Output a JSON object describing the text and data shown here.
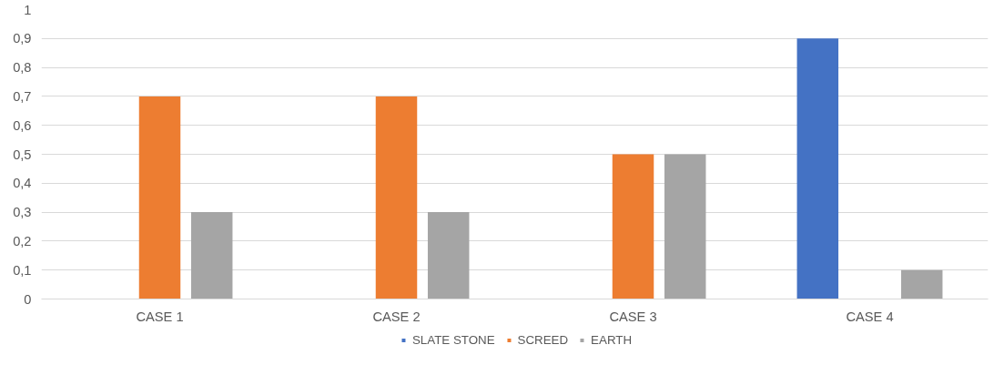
{
  "chart_data": {
    "type": "bar",
    "categories": [
      "CASE 1",
      "CASE 2",
      "CASE 3",
      "CASE 4"
    ],
    "series": [
      {
        "name": "SLATE STONE",
        "color": "#4472c4",
        "values": [
          0,
          0,
          0,
          0.9
        ]
      },
      {
        "name": "SCREED",
        "color": "#ed7d31",
        "values": [
          0.7,
          0.7,
          0.5,
          0
        ]
      },
      {
        "name": "EARTH",
        "color": "#a5a5a5",
        "values": [
          0.3,
          0.3,
          0.5,
          0.1
        ]
      }
    ],
    "ylim": [
      0,
      1
    ],
    "yticks": [
      0,
      {
        "value": 0.1,
        "label": "0,1"
      },
      {
        "value": 0.2,
        "label": "0,2"
      },
      {
        "value": 0.3,
        "label": "0,3"
      },
      {
        "value": 0.4,
        "label": "0,4"
      },
      {
        "value": 0.5,
        "label": "0,5"
      },
      {
        "value": 0.6,
        "label": "0,6"
      },
      {
        "value": 0.7,
        "label": "0,7"
      },
      {
        "value": 0.8,
        "label": "0,8"
      },
      {
        "value": 0.9,
        "label": "0,9"
      },
      1
    ],
    "grid": "y",
    "legend": "bottom"
  }
}
